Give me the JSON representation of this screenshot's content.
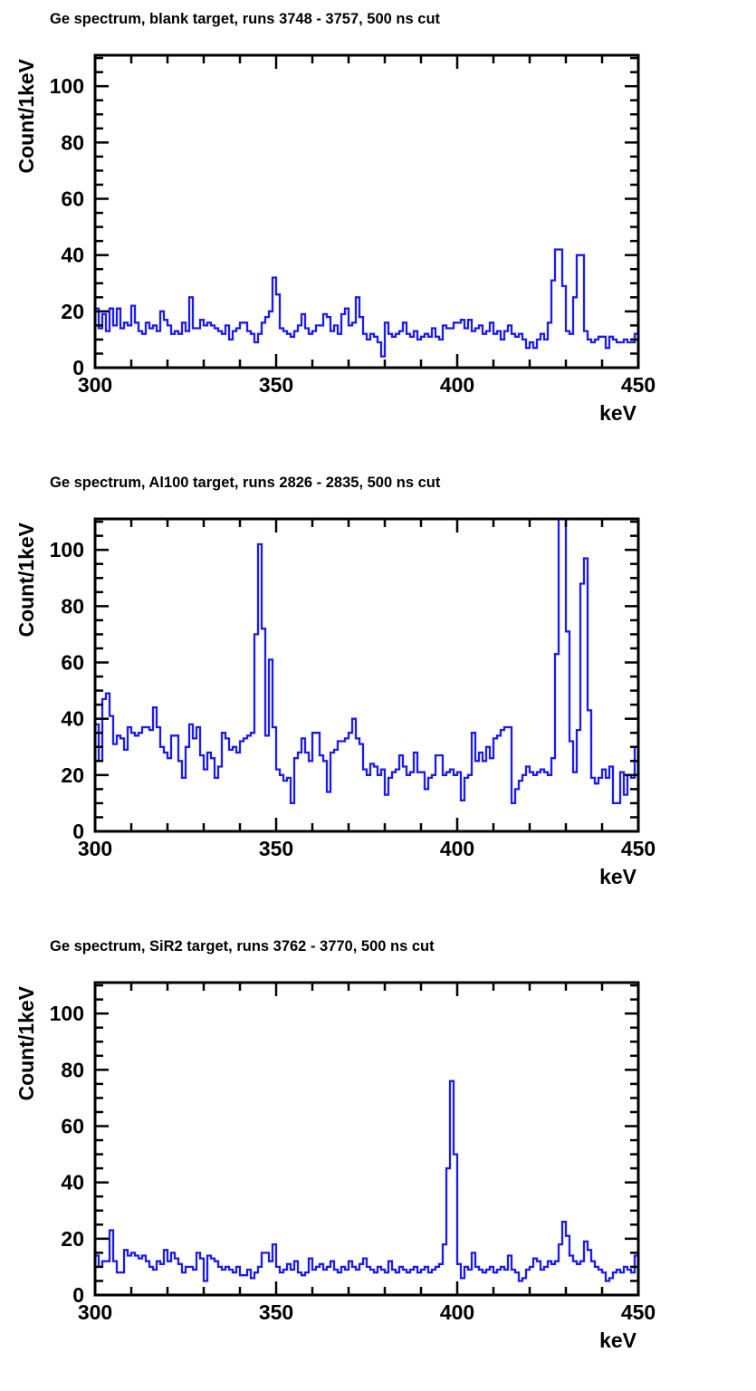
{
  "page": {
    "background": "#ffffff",
    "text_color": "#000000"
  },
  "chart_data": [
    {
      "type": "line",
      "style": "step-histogram",
      "title": "Ge spectrum, blank target, runs 3748 - 3757, 500 ns cut",
      "xlabel": "keV",
      "ylabel": "Count/1keV",
      "xlim": [
        300,
        450
      ],
      "ylim": [
        0,
        111
      ],
      "x_ticks": [
        300,
        350,
        400,
        450
      ],
      "y_ticks": [
        0,
        20,
        40,
        60,
        80,
        100
      ],
      "x_minor_step": 10,
      "y_minor_step": 5,
      "grid": false,
      "legend": false,
      "line_color": "#1b1bef",
      "bin_start": 300,
      "bin_width": 1,
      "values": [
        21,
        14,
        19,
        13,
        21,
        15,
        21,
        14,
        16,
        15,
        22,
        16,
        13,
        12,
        16,
        14,
        15,
        13,
        20,
        17,
        15,
        12,
        13,
        12,
        16,
        13,
        25,
        14,
        14,
        17,
        15,
        16,
        15,
        14,
        13,
        12,
        15,
        10,
        13,
        14,
        16,
        16,
        13,
        12,
        9,
        12,
        16,
        18,
        20,
        32,
        26,
        14,
        13,
        12,
        11,
        13,
        15,
        19,
        14,
        12,
        13,
        15,
        15,
        19,
        18,
        13,
        15,
        12,
        19,
        21,
        15,
        16,
        25,
        18,
        12,
        10,
        12,
        11,
        9,
        4,
        16,
        12,
        11,
        12,
        13,
        16,
        12,
        11,
        13,
        10,
        11,
        12,
        11,
        14,
        11,
        10,
        15,
        14,
        14,
        16,
        16,
        17,
        14,
        17,
        13,
        14,
        15,
        12,
        13,
        16,
        12,
        13,
        10,
        13,
        15,
        12,
        11,
        12,
        10,
        7,
        9,
        7,
        10,
        12,
        10,
        16,
        31,
        42,
        42,
        29,
        13,
        12,
        25,
        40,
        40,
        13,
        10,
        9,
        10,
        11,
        11,
        7,
        11,
        10,
        9,
        9,
        10,
        9,
        9,
        12
      ]
    },
    {
      "type": "line",
      "style": "step-histogram",
      "title": "Ge spectrum, Al100 target, runs 2826 - 2835, 500 ns cut",
      "xlabel": "keV",
      "ylabel": "Count/1keV",
      "xlim": [
        300,
        450
      ],
      "ylim": [
        0,
        111
      ],
      "x_ticks": [
        300,
        350,
        400,
        450
      ],
      "y_ticks": [
        0,
        20,
        40,
        60,
        80,
        100
      ],
      "x_minor_step": 10,
      "y_minor_step": 5,
      "grid": false,
      "legend": false,
      "line_color": "#1b1bef",
      "bin_start": 300,
      "bin_width": 1,
      "note": "peak near 428-429 keV exceeds axis maximum and is clipped at top of frame",
      "values": [
        38,
        25,
        47,
        49,
        41,
        31,
        34,
        33,
        29,
        37,
        35,
        34,
        35,
        37,
        37,
        36,
        44,
        37,
        30,
        28,
        26,
        34,
        34,
        25,
        19,
        30,
        38,
        33,
        37,
        27,
        22,
        28,
        26,
        19,
        23,
        35,
        33,
        29,
        30,
        28,
        32,
        33,
        34,
        35,
        70,
        102,
        72,
        34,
        61,
        37,
        22,
        20,
        18,
        19,
        10,
        26,
        28,
        33,
        28,
        25,
        35,
        35,
        27,
        25,
        14,
        28,
        29,
        32,
        32,
        33,
        35,
        40,
        33,
        31,
        22,
        20,
        24,
        23,
        20,
        22,
        13,
        19,
        21,
        22,
        27,
        23,
        20,
        21,
        28,
        21,
        21,
        15,
        19,
        20,
        27,
        27,
        20,
        21,
        22,
        20,
        21,
        11,
        19,
        20,
        35,
        25,
        28,
        25,
        30,
        26,
        33,
        34,
        36,
        37,
        37,
        10,
        15,
        18,
        20,
        23,
        21,
        20,
        21,
        22,
        21,
        20,
        26,
        63,
        115,
        115,
        71,
        32,
        21,
        36,
        88,
        97,
        43,
        19,
        17,
        19,
        22,
        19,
        23,
        10,
        10,
        21,
        13,
        20,
        19,
        30
      ]
    },
    {
      "type": "line",
      "style": "step-histogram",
      "title": "Ge spectrum, SiR2 target, runs 3762 - 3770, 500 ns cut",
      "xlabel": "keV",
      "ylabel": "Count/1keV",
      "xlim": [
        300,
        450
      ],
      "ylim": [
        0,
        111
      ],
      "x_ticks": [
        300,
        350,
        400,
        450
      ],
      "y_ticks": [
        0,
        20,
        40,
        60,
        80,
        100
      ],
      "x_minor_step": 10,
      "y_minor_step": 5,
      "grid": false,
      "legend": false,
      "line_color": "#1b1bef",
      "bin_start": 300,
      "bin_width": 1,
      "values": [
        14,
        10,
        12,
        12,
        23,
        12,
        8,
        8,
        16,
        14,
        15,
        14,
        13,
        14,
        12,
        10,
        9,
        12,
        11,
        16,
        12,
        15,
        13,
        11,
        8,
        10,
        10,
        9,
        15,
        13,
        5,
        14,
        13,
        12,
        10,
        9,
        10,
        9,
        8,
        10,
        7,
        7,
        9,
        6,
        8,
        10,
        15,
        15,
        12,
        18,
        10,
        8,
        9,
        11,
        9,
        12,
        8,
        7,
        8,
        13,
        9,
        10,
        11,
        9,
        10,
        12,
        9,
        8,
        10,
        9,
        12,
        10,
        9,
        11,
        13,
        10,
        9,
        8,
        10,
        9,
        8,
        12,
        9,
        8,
        10,
        9,
        8,
        9,
        10,
        8,
        9,
        10,
        8,
        9,
        10,
        11,
        18,
        45,
        76,
        50,
        11,
        6,
        10,
        9,
        15,
        10,
        9,
        8,
        9,
        10,
        8,
        9,
        10,
        9,
        14,
        9,
        8,
        5,
        6,
        9,
        10,
        13,
        12,
        9,
        10,
        12,
        11,
        12,
        18,
        26,
        21,
        14,
        12,
        11,
        12,
        19,
        16,
        12,
        10,
        9,
        8,
        5,
        6,
        8,
        9,
        8,
        10,
        9,
        8,
        14
      ]
    }
  ]
}
